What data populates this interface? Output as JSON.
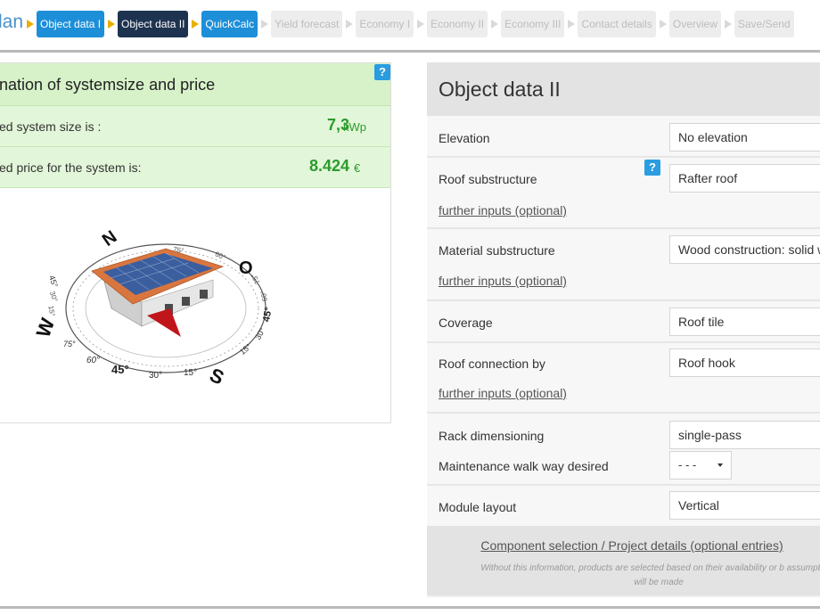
{
  "nav": {
    "brand": "lan",
    "steps": [
      {
        "label": "Object data I",
        "state": "done"
      },
      {
        "label": "Object data II",
        "state": "active"
      },
      {
        "label": "QuickCalc",
        "state": "done"
      },
      {
        "label": "Yield forecast",
        "state": "todo"
      },
      {
        "label": "Economy I",
        "state": "todo"
      },
      {
        "label": "Economy II",
        "state": "todo"
      },
      {
        "label": "Economy III",
        "state": "todo"
      },
      {
        "label": "Contact details",
        "state": "todo"
      },
      {
        "label": "Overview",
        "state": "todo"
      },
      {
        "label": "Save/Send",
        "state": "todo"
      }
    ]
  },
  "estimate": {
    "title": "nation of systemsize and price",
    "help": "?",
    "size_label": "ed system size is :",
    "size_value": "7,3",
    "size_unit": "kWp",
    "price_label": "ed price for the system is:",
    "price_value": "8.424",
    "price_unit": "€",
    "compass": {
      "N": "N",
      "O": "O",
      "S": "S",
      "W": "W",
      "left_angles": [
        "15°",
        "30°",
        "45°"
      ],
      "bottom_angles": [
        "75°",
        "60°",
        "45°",
        "30°",
        "15°"
      ],
      "right_angles": [
        "15°",
        "30°",
        "45°",
        "60°",
        "75°"
      ],
      "top_angles": [
        "75°",
        "60°"
      ],
      "colors": {
        "roof": "#d9763f",
        "panel": "#3b5e9e",
        "wall": "#e4e4e4",
        "pointer": "#c0151a"
      }
    }
  },
  "form": {
    "title": "Object data II",
    "elevation_label": "Elevation",
    "elevation_value": "No elevation",
    "roof_sub_label": "Roof substructure",
    "roof_sub_value": "Rafter roof",
    "roof_sub_link": "further inputs (optional)",
    "help": "?",
    "material_label": "Material substructure",
    "material_value": "Wood construction: solid w",
    "material_link": "further inputs (optional)",
    "coverage_label": "Coverage",
    "coverage_value": "Roof tile",
    "connection_label": "Roof connection by",
    "connection_value": "Roof hook",
    "connection_link": "further inputs (optional)",
    "rack_label": "Rack dimensioning",
    "rack_value": "single-pass",
    "walkway_label": "Maintenance walk way desired",
    "walkway_value": "- - -",
    "module_label": "Module layout",
    "module_value": "Vertical",
    "footer_link": "Component selection / Project details (optional entries)",
    "footer_note": "Without this information, products are selected based on their availability or b assumptions will be made"
  }
}
